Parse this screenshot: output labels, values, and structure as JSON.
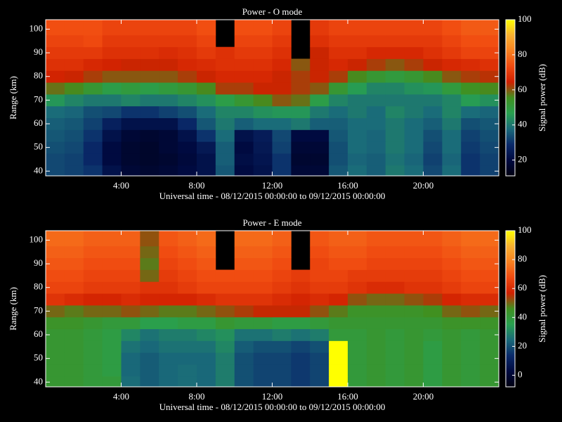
{
  "chart_data": [
    {
      "type": "heatmap",
      "title": "Power - O mode",
      "xlabel": "Universal time - 08/12/2015 00:00:00 to 09/12/2015 00:00:00",
      "ylabel": "Range (km)",
      "colorbar_label": "Signal power (dB)",
      "x": [
        0.5,
        1.5,
        2.5,
        3.5,
        4.5,
        5.5,
        6.5,
        7.5,
        8.5,
        9.5,
        10.5,
        11.5,
        12.5,
        13.5,
        14.5,
        15.5,
        16.5,
        17.5,
        18.5,
        19.5,
        20.5,
        21.5,
        22.5,
        23.5
      ],
      "y": [
        40,
        45,
        50,
        55,
        60,
        65,
        70,
        75,
        80,
        85,
        90,
        95,
        100
      ],
      "z": [
        [
          33,
          32,
          30,
          22,
          18,
          17,
          18,
          20,
          22,
          35,
          20,
          22,
          30,
          18,
          18,
          35,
          38,
          36,
          40,
          38,
          33,
          38,
          30,
          32
        ],
        [
          33,
          32,
          28,
          20,
          17,
          16,
          17,
          19,
          22,
          36,
          21,
          23,
          30,
          17,
          17,
          34,
          37,
          36,
          39,
          37,
          32,
          37,
          30,
          32
        ],
        [
          34,
          33,
          28,
          20,
          17,
          16,
          18,
          20,
          24,
          36,
          20,
          24,
          32,
          18,
          18,
          34,
          38,
          37,
          40,
          38,
          33,
          38,
          31,
          33
        ],
        [
          35,
          34,
          30,
          22,
          18,
          17,
          18,
          22,
          30,
          38,
          22,
          25,
          33,
          20,
          20,
          35,
          38,
          37,
          40,
          38,
          34,
          38,
          32,
          34
        ],
        [
          36,
          35,
          32,
          26,
          22,
          22,
          22,
          28,
          35,
          40,
          36,
          38,
          38,
          40,
          36,
          36,
          38,
          38,
          40,
          38,
          36,
          40,
          34,
          35
        ],
        [
          38,
          37,
          34,
          33,
          30,
          30,
          32,
          34,
          38,
          42,
          42,
          44,
          45,
          45,
          40,
          38,
          40,
          38,
          42,
          40,
          38,
          42,
          38,
          37
        ],
        [
          45,
          42,
          40,
          40,
          42,
          40,
          40,
          42,
          44,
          48,
          52,
          56,
          60,
          58,
          48,
          42,
          40,
          40,
          40,
          40,
          40,
          42,
          46,
          44
        ],
        [
          58,
          56,
          52,
          48,
          50,
          48,
          50,
          52,
          56,
          62,
          62,
          64,
          64,
          62,
          60,
          52,
          46,
          42,
          42,
          44,
          45,
          50,
          55,
          56
        ],
        [
          65,
          64,
          62,
          60,
          60,
          60,
          60,
          62,
          64,
          66,
          66,
          66,
          64,
          62,
          64,
          62,
          56,
          52,
          50,
          52,
          56,
          60,
          62,
          63
        ],
        [
          68,
          68,
          66,
          65,
          64,
          64,
          64,
          66,
          67,
          68,
          68,
          68,
          66,
          60,
          64,
          66,
          64,
          62,
          60,
          62,
          64,
          66,
          67,
          68
        ],
        [
          70,
          70,
          70,
          68,
          68,
          68,
          67,
          68,
          70,
          68,
          70,
          70,
          68,
          null,
          64,
          68,
          68,
          66,
          66,
          66,
          68,
          70,
          72,
          72
        ],
        [
          72,
          72,
          73,
          70,
          70,
          70,
          70,
          70,
          72,
          null,
          72,
          72,
          70,
          null,
          68,
          70,
          70,
          70,
          70,
          70,
          70,
          72,
          74,
          74
        ],
        [
          74,
          74,
          74,
          72,
          72,
          72,
          72,
          72,
          74,
          null,
          74,
          74,
          72,
          null,
          70,
          72,
          72,
          72,
          72,
          72,
          72,
          74,
          76,
          76
        ]
      ],
      "xlim": [
        0,
        24
      ],
      "xticks": [
        {
          "value": 4,
          "label": "4:00"
        },
        {
          "value": 8,
          "label": "8:00"
        },
        {
          "value": 12,
          "label": "12:00"
        },
        {
          "value": 16,
          "label": "16:00"
        },
        {
          "value": 20,
          "label": "20:00"
        }
      ],
      "ylim": [
        38,
        104
      ],
      "yticks": [
        40,
        50,
        60,
        70,
        80,
        90,
        100
      ],
      "zlim": [
        11,
        100
      ],
      "zticks": [
        20,
        40,
        60,
        80,
        100
      ],
      "colormap": [
        "#000010",
        "#000a40",
        "#0a2a6a",
        "#1a6a7a",
        "#28a050",
        "#409020",
        "#d02000",
        "#f04a10",
        "#f88020",
        "#f8b030",
        "#ffff00"
      ]
    },
    {
      "type": "heatmap",
      "title": "Power - E mode",
      "xlabel": "Universal time - 08/12/2015 00:00:00 to 09/12/2015 00:00:00",
      "ylabel": "Range (km)",
      "colorbar_label": "Signal power (dB)",
      "x": [
        0.5,
        1.5,
        2.5,
        3.5,
        4.5,
        5.5,
        6.5,
        7.5,
        8.5,
        9.5,
        10.5,
        11.5,
        12.5,
        13.5,
        14.5,
        15.5,
        16.5,
        17.5,
        18.5,
        19.5,
        20.5,
        21.5,
        22.5,
        23.5
      ],
      "y": [
        40,
        45,
        50,
        55,
        60,
        65,
        70,
        75,
        80,
        85,
        90,
        95,
        100
      ],
      "z": [
        [
          42,
          42,
          40,
          40,
          25,
          22,
          24,
          25,
          24,
          28,
          20,
          18,
          18,
          16,
          18,
          100,
          40,
          42,
          40,
          42,
          38,
          42,
          40,
          42
        ],
        [
          42,
          42,
          40,
          38,
          24,
          22,
          24,
          25,
          24,
          28,
          20,
          18,
          18,
          16,
          18,
          100,
          40,
          42,
          40,
          42,
          38,
          42,
          40,
          42
        ],
        [
          42,
          42,
          40,
          38,
          24,
          22,
          24,
          24,
          24,
          28,
          20,
          18,
          18,
          16,
          18,
          100,
          40,
          42,
          40,
          42,
          38,
          42,
          40,
          42
        ],
        [
          42,
          42,
          40,
          38,
          26,
          24,
          26,
          26,
          26,
          30,
          22,
          20,
          20,
          18,
          20,
          100,
          40,
          42,
          40,
          42,
          38,
          42,
          40,
          42
        ],
        [
          42,
          42,
          40,
          38,
          30,
          26,
          28,
          28,
          30,
          32,
          26,
          26,
          28,
          26,
          28,
          40,
          40,
          42,
          40,
          42,
          40,
          42,
          40,
          42
        ],
        [
          44,
          44,
          42,
          40,
          40,
          36,
          36,
          38,
          38,
          42,
          40,
          40,
          38,
          38,
          40,
          42,
          42,
          42,
          42,
          42,
          42,
          44,
          44,
          44
        ],
        [
          50,
          48,
          50,
          50,
          52,
          50,
          48,
          48,
          50,
          52,
          54,
          56,
          56,
          56,
          52,
          48,
          44,
          44,
          44,
          44,
          46,
          50,
          52,
          50
        ],
        [
          62,
          60,
          58,
          58,
          60,
          58,
          58,
          58,
          60,
          62,
          62,
          62,
          60,
          58,
          60,
          58,
          52,
          50,
          50,
          52,
          54,
          58,
          60,
          60
        ],
        [
          66,
          66,
          64,
          64,
          64,
          62,
          62,
          64,
          66,
          66,
          66,
          66,
          64,
          62,
          64,
          64,
          62,
          60,
          60,
          62,
          62,
          64,
          66,
          66
        ],
        [
          68,
          68,
          66,
          66,
          66,
          50,
          64,
          66,
          68,
          68,
          68,
          68,
          66,
          64,
          66,
          66,
          64,
          64,
          64,
          64,
          64,
          66,
          68,
          68
        ],
        [
          70,
          70,
          68,
          68,
          68,
          48,
          66,
          68,
          70,
          null,
          70,
          70,
          68,
          null,
          66,
          68,
          68,
          66,
          66,
          66,
          66,
          68,
          70,
          70
        ],
        [
          72,
          72,
          70,
          70,
          70,
          50,
          68,
          70,
          72,
          null,
          72,
          72,
          70,
          null,
          68,
          70,
          70,
          68,
          68,
          68,
          68,
          70,
          72,
          72
        ],
        [
          74,
          74,
          72,
          72,
          72,
          52,
          70,
          72,
          74,
          null,
          74,
          74,
          72,
          null,
          70,
          72,
          72,
          70,
          70,
          70,
          70,
          72,
          74,
          74
        ]
      ],
      "xlim": [
        0,
        24
      ],
      "xticks": [
        {
          "value": 4,
          "label": "4:00"
        },
        {
          "value": 8,
          "label": "8:00"
        },
        {
          "value": 12,
          "label": "12:00"
        },
        {
          "value": 16,
          "label": "16:00"
        },
        {
          "value": 20,
          "label": "20:00"
        }
      ],
      "ylim": [
        38,
        104
      ],
      "yticks": [
        40,
        50,
        60,
        70,
        80,
        90,
        100
      ],
      "zlim": [
        -8,
        100
      ],
      "zticks": [
        0,
        20,
        40,
        60,
        80,
        100
      ],
      "colormap": [
        "#000010",
        "#000a40",
        "#0a2a6a",
        "#1a6a7a",
        "#28a050",
        "#409020",
        "#d02000",
        "#f04a10",
        "#f88020",
        "#f8b030",
        "#ffff00"
      ]
    }
  ]
}
